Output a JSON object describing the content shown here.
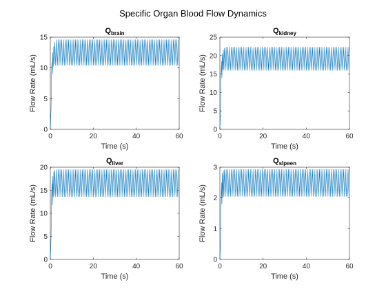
{
  "figure": {
    "suptitle": "Specific Organ Blood Flow Dynamics"
  },
  "chart_data": [
    {
      "type": "line",
      "title": "Q",
      "title_subscript": "brain",
      "xlabel": "Time (s)",
      "ylabel": "Flow Rate (mL/s)",
      "xlim": [
        0,
        60
      ],
      "ylim": [
        0,
        15
      ],
      "xticks": [
        0,
        20,
        40,
        60
      ],
      "yticks": [
        0,
        5,
        10,
        15
      ],
      "color": "#0072BD",
      "series": [
        {
          "startup": [
            [
              0,
              0
            ],
            [
              0.15,
              1.2
            ],
            [
              0.35,
              3.5
            ],
            [
              0.55,
              8.5
            ],
            [
              0.75,
              11.0
            ],
            [
              0.95,
              9.0
            ],
            [
              1.15,
              12.5
            ],
            [
              1.35,
              10.2
            ],
            [
              1.6,
              13.5
            ],
            [
              1.85,
              10.6
            ],
            [
              2.1,
              14.2
            ]
          ],
          "steady_state": {
            "from": 2.1,
            "to": 60,
            "period": 0.8,
            "min": 10.4,
            "max": 14.6
          }
        }
      ]
    },
    {
      "type": "line",
      "title": "Q",
      "title_subscript": "kidney",
      "xlabel": "Time (s)",
      "ylabel": "Flow Rate (mL/s)",
      "xlim": [
        0,
        60
      ],
      "ylim": [
        0,
        25
      ],
      "xticks": [
        0,
        20,
        40,
        60
      ],
      "yticks": [
        0,
        5,
        10,
        15,
        20,
        25
      ],
      "color": "#0072BD",
      "series": [
        {
          "startup": [
            [
              0,
              0
            ],
            [
              0.15,
              2.0
            ],
            [
              0.35,
              5.5
            ],
            [
              0.55,
              14.0
            ],
            [
              0.75,
              18.5
            ],
            [
              0.95,
              14.0
            ],
            [
              1.15,
              20.5
            ],
            [
              1.35,
              16.0
            ],
            [
              1.6,
              21.5
            ],
            [
              1.85,
              16.2
            ],
            [
              2.1,
              22.0
            ]
          ],
          "steady_state": {
            "from": 2.1,
            "to": 60,
            "period": 0.8,
            "min": 16.0,
            "max": 22.3
          }
        }
      ]
    },
    {
      "type": "line",
      "title": "Q",
      "title_subscript": "liver",
      "xlabel": "Time (s)",
      "ylabel": "Flow Rate (mL/s)",
      "xlim": [
        0,
        60
      ],
      "ylim": [
        0,
        20
      ],
      "xticks": [
        0,
        20,
        40,
        60
      ],
      "yticks": [
        0,
        5,
        10,
        15,
        20
      ],
      "color": "#0072BD",
      "series": [
        {
          "startup": [
            [
              0,
              0
            ],
            [
              0.15,
              1.5
            ],
            [
              0.35,
              5.0
            ],
            [
              0.55,
              12.0
            ],
            [
              0.75,
              16.5
            ],
            [
              0.95,
              11.8
            ],
            [
              1.15,
              18.0
            ],
            [
              1.35,
              13.5
            ],
            [
              1.6,
              19.0
            ],
            [
              1.85,
              13.8
            ],
            [
              2.1,
              19.4
            ]
          ],
          "steady_state": {
            "from": 2.1,
            "to": 60,
            "period": 0.8,
            "min": 13.6,
            "max": 19.5
          }
        }
      ]
    },
    {
      "type": "line",
      "title": "Q",
      "title_subscript": "slpeen",
      "xlabel": "Time (s)",
      "ylabel": "Flow Rate (mL/s)",
      "xlim": [
        0,
        60
      ],
      "ylim": [
        0,
        3
      ],
      "xticks": [
        0,
        20,
        40,
        60
      ],
      "yticks": [
        0,
        1,
        2,
        3
      ],
      "color": "#0072BD",
      "series": [
        {
          "startup": [
            [
              0,
              0
            ],
            [
              0.15,
              0.2
            ],
            [
              0.35,
              0.7
            ],
            [
              0.55,
              1.7
            ],
            [
              0.75,
              2.5
            ],
            [
              0.95,
              1.8
            ],
            [
              1.15,
              2.8
            ],
            [
              1.35,
              2.0
            ],
            [
              1.6,
              2.9
            ],
            [
              1.85,
              2.05
            ],
            [
              2.1,
              2.92
            ]
          ],
          "steady_state": {
            "from": 2.1,
            "to": 60,
            "period": 0.8,
            "min": 2.05,
            "max": 2.93
          }
        }
      ]
    }
  ]
}
